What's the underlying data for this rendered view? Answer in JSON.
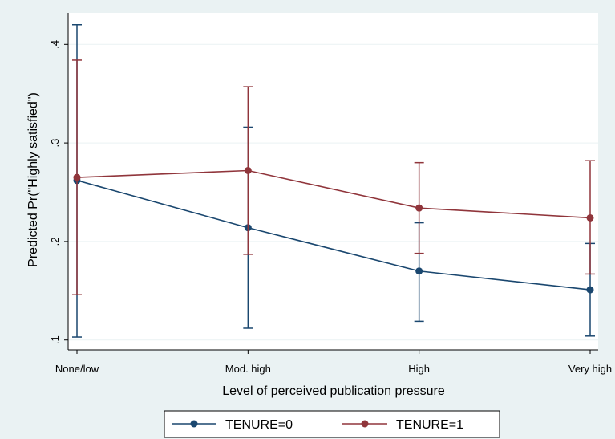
{
  "chart_data": {
    "type": "line",
    "title": "",
    "xlabel": "Level of perceived publication pressure",
    "ylabel": "Predicted Pr(\"Highly satisfied\")",
    "categories": [
      "None/low",
      "Mod. high",
      "High",
      "Very high"
    ],
    "yticks": [
      0.1,
      0.2,
      0.3,
      0.4
    ],
    "ytick_labels": [
      ".1",
      ".2",
      ".3",
      ".4"
    ],
    "ylim": [
      0.09,
      0.432
    ],
    "grid": true,
    "legend_position": "bottom",
    "series": [
      {
        "name": "TENURE=0",
        "color": "#1a476f",
        "values": [
          0.262,
          0.214,
          0.17,
          0.151
        ],
        "ci_low": [
          0.103,
          0.112,
          0.119,
          0.104
        ],
        "ci_high": [
          0.42,
          0.316,
          0.219,
          0.198
        ]
      },
      {
        "name": "TENURE=1",
        "color": "#90353b",
        "values": [
          0.265,
          0.272,
          0.234,
          0.224
        ],
        "ci_low": [
          0.146,
          0.187,
          0.188,
          0.167
        ],
        "ci_high": [
          0.384,
          0.357,
          0.28,
          0.282
        ]
      }
    ]
  }
}
